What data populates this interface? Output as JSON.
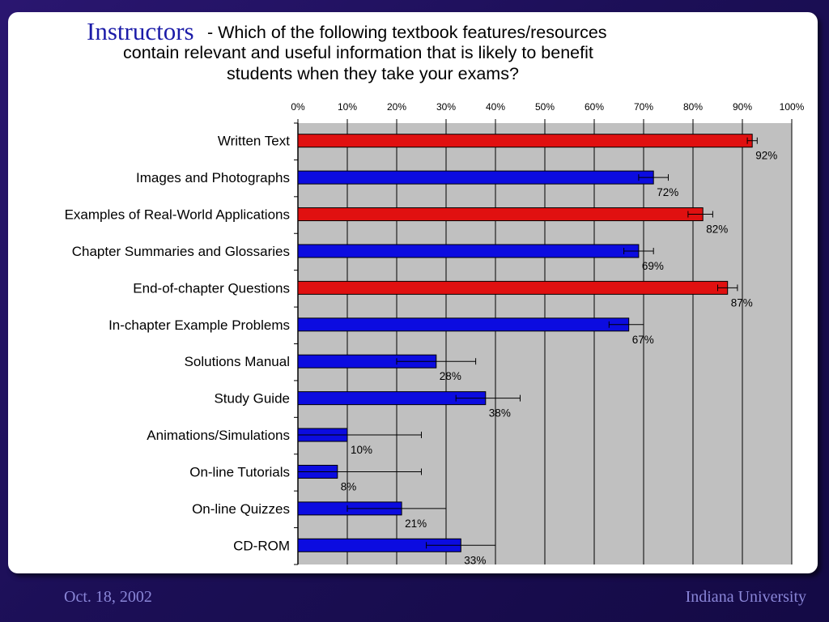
{
  "slide": {
    "title_prefix": "Instructors",
    "title_lines": [
      "- Which of the following textbook features/resources",
      "contain relevant and useful information that is likely to benefit",
      "students when they take your exams?"
    ]
  },
  "footer": {
    "date": "Oct. 18, 2002",
    "institution": "Indiana University"
  },
  "colors": {
    "background": "#1c0f57",
    "plot_area": "#c0c0c0",
    "bar_red": "#e01010",
    "bar_blue": "#0c0ce0",
    "title_accent": "#1b1ba8",
    "footer_text": "#8a86d8"
  },
  "chart_data": {
    "type": "bar",
    "orientation": "horizontal",
    "title": "",
    "xlabel": "",
    "ylabel": "",
    "xlim": [
      0,
      100
    ],
    "x_ticks": [
      "0%",
      "10%",
      "20%",
      "30%",
      "40%",
      "50%",
      "60%",
      "70%",
      "80%",
      "90%",
      "100%"
    ],
    "grid": true,
    "legend": "none",
    "categories": [
      "Written Text",
      "Images and Photographs",
      "Examples of Real-World Applications",
      "Chapter Summaries and Glossaries",
      "End-of-chapter Questions",
      "In-chapter Example Problems",
      "Solutions Manual",
      "Study Guide",
      "Animations/Simulations",
      "On-line Tutorials",
      "On-line Quizzes",
      "CD-ROM"
    ],
    "values": [
      92,
      72,
      82,
      69,
      87,
      67,
      28,
      38,
      10,
      8,
      21,
      33
    ],
    "data_labels": [
      "92%",
      "72%",
      "82%",
      "69%",
      "87%",
      "67%",
      "28%",
      "38%",
      "10%",
      "8%",
      "21%",
      "33%"
    ],
    "error_low": [
      91,
      69,
      79,
      66,
      85,
      63,
      20,
      32,
      0,
      0,
      10,
      26
    ],
    "error_high": [
      93,
      75,
      84,
      72,
      89,
      70,
      36,
      45,
      25,
      25,
      30,
      40
    ],
    "bar_colors": [
      "red",
      "blue",
      "red",
      "blue",
      "red",
      "blue",
      "blue",
      "blue",
      "blue",
      "blue",
      "blue",
      "blue"
    ]
  }
}
